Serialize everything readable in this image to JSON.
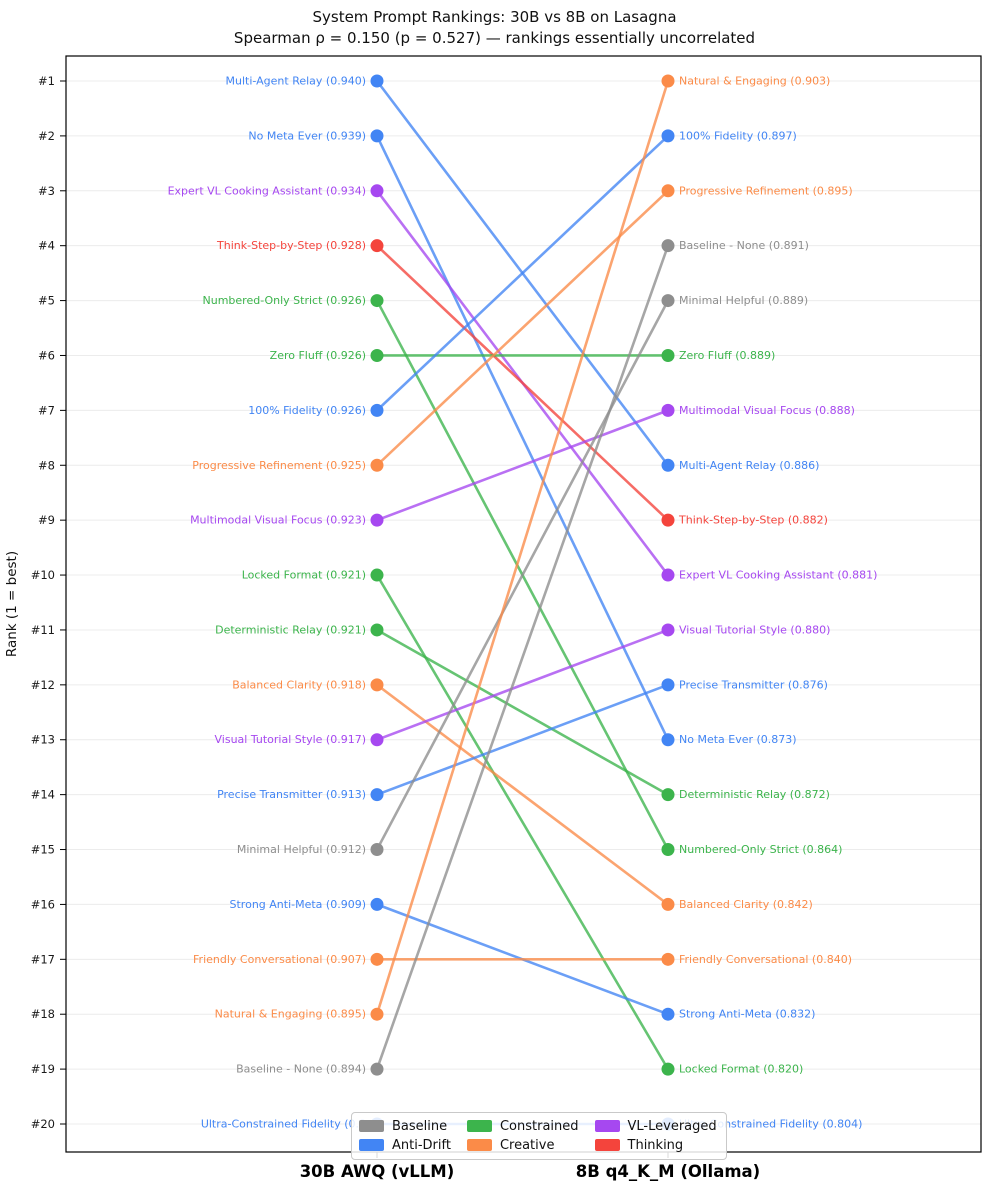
{
  "title": "System Prompt Rankings: 30B vs 8B on Lasagna",
  "subtitle": "Spearman ρ = 0.150 (p = 0.527) — rankings essentially uncorrelated",
  "chart_data": {
    "type": "line",
    "subtype": "slope-ranking",
    "title": "System Prompt Rankings: 30B vs 8B on Lasagna",
    "subtitle": "Spearman ρ = 0.150 (p = 0.527) — rankings essentially uncorrelated",
    "ylabel": "Rank (1 = best)",
    "yticks": [
      "#1",
      "#2",
      "#3",
      "#4",
      "#5",
      "#6",
      "#7",
      "#8",
      "#9",
      "#10",
      "#11",
      "#12",
      "#13",
      "#14",
      "#15",
      "#16",
      "#17",
      "#18",
      "#19",
      "#20"
    ],
    "ylim": [
      1,
      20
    ],
    "grid": true,
    "legend_position": "lower center",
    "columns": [
      {
        "label": "30B AWQ (vLLM)"
      },
      {
        "label": "8B q4_K_M (Ollama)"
      }
    ],
    "categories": {
      "Baseline": "#8e8e8e",
      "Anti-Drift": "#4285f4",
      "Constrained": "#3cb44c",
      "Creative": "#fb8b48",
      "VL-Leveraged": "#a648f0",
      "Thinking": "#f4443c"
    },
    "legend_columns": [
      [
        "Baseline",
        "Anti-Drift"
      ],
      [
        "Constrained",
        "Creative"
      ],
      [
        "VL-Leveraged",
        "Thinking"
      ]
    ],
    "prompts": [
      {
        "name": "Multi-Agent Relay",
        "category": "Anti-Drift",
        "left_rank": 1,
        "right_rank": 8,
        "left_label": "Multi-Agent Relay (0.940)",
        "right_label": "Multi-Agent Relay (0.886)"
      },
      {
        "name": "No Meta Ever",
        "category": "Anti-Drift",
        "left_rank": 2,
        "right_rank": 13,
        "left_label": "No Meta Ever (0.939)",
        "right_label": "No Meta Ever (0.873)"
      },
      {
        "name": "Expert VL Cooking Assistant",
        "category": "VL-Leveraged",
        "left_rank": 3,
        "right_rank": 10,
        "left_label": "Expert VL Cooking Assistant (0.934)",
        "right_label": "Expert VL Cooking Assistant (0.881)"
      },
      {
        "name": "Think-Step-by-Step",
        "category": "Thinking",
        "left_rank": 4,
        "right_rank": 9,
        "left_label": "Think-Step-by-Step (0.928)",
        "right_label": "Think-Step-by-Step (0.882)"
      },
      {
        "name": "Numbered-Only Strict",
        "category": "Constrained",
        "left_rank": 5,
        "right_rank": 15,
        "left_label": "Numbered-Only Strict (0.926)",
        "right_label": "Numbered-Only Strict (0.864)"
      },
      {
        "name": "Zero Fluff",
        "category": "Constrained",
        "left_rank": 6,
        "right_rank": 6,
        "left_label": "Zero Fluff (0.926)",
        "right_label": "Zero Fluff (0.889)"
      },
      {
        "name": "100% Fidelity",
        "category": "Anti-Drift",
        "left_rank": 7,
        "right_rank": 2,
        "left_label": "100% Fidelity (0.926)",
        "right_label": "100% Fidelity (0.897)"
      },
      {
        "name": "Progressive Refinement",
        "category": "Creative",
        "left_rank": 8,
        "right_rank": 3,
        "left_label": "Progressive Refinement (0.925)",
        "right_label": "Progressive Refinement (0.895)"
      },
      {
        "name": "Multimodal Visual Focus",
        "category": "VL-Leveraged",
        "left_rank": 9,
        "right_rank": 7,
        "left_label": "Multimodal Visual Focus (0.923)",
        "right_label": "Multimodal Visual Focus (0.888)"
      },
      {
        "name": "Locked Format",
        "category": "Constrained",
        "left_rank": 10,
        "right_rank": 19,
        "left_label": "Locked Format (0.921)",
        "right_label": "Locked Format (0.820)"
      },
      {
        "name": "Deterministic Relay",
        "category": "Constrained",
        "left_rank": 11,
        "right_rank": 14,
        "left_label": "Deterministic Relay (0.921)",
        "right_label": "Deterministic Relay (0.872)"
      },
      {
        "name": "Balanced Clarity",
        "category": "Creative",
        "left_rank": 12,
        "right_rank": 16,
        "left_label": "Balanced Clarity (0.918)",
        "right_label": "Balanced Clarity (0.842)"
      },
      {
        "name": "Visual Tutorial Style",
        "category": "VL-Leveraged",
        "left_rank": 13,
        "right_rank": 11,
        "left_label": "Visual Tutorial Style (0.917)",
        "right_label": "Visual Tutorial Style (0.880)"
      },
      {
        "name": "Precise Transmitter",
        "category": "Anti-Drift",
        "left_rank": 14,
        "right_rank": 12,
        "left_label": "Precise Transmitter (0.913)",
        "right_label": "Precise Transmitter (0.876)"
      },
      {
        "name": "Minimal Helpful",
        "category": "Baseline",
        "left_rank": 15,
        "right_rank": 5,
        "left_label": "Minimal Helpful (0.912)",
        "right_label": "Minimal Helpful (0.889)"
      },
      {
        "name": "Strong Anti-Meta",
        "category": "Anti-Drift",
        "left_rank": 16,
        "right_rank": 18,
        "left_label": "Strong Anti-Meta (0.909)",
        "right_label": "Strong Anti-Meta (0.832)"
      },
      {
        "name": "Friendly Conversational",
        "category": "Creative",
        "left_rank": 17,
        "right_rank": 17,
        "left_label": "Friendly Conversational (0.907)",
        "right_label": "Friendly Conversational (0.840)"
      },
      {
        "name": "Natural & Engaging",
        "category": "Creative",
        "left_rank": 18,
        "right_rank": 1,
        "left_label": "Natural & Engaging (0.895)",
        "right_label": "Natural & Engaging (0.903)"
      },
      {
        "name": "Baseline - None",
        "category": "Baseline",
        "left_rank": 19,
        "right_rank": 4,
        "left_label": "Baseline - None (0.894)",
        "right_label": "Baseline - None (0.891)"
      },
      {
        "name": "Ultra-Constrained Fidelity",
        "category": "Anti-Drift",
        "left_rank": 20,
        "right_rank": 20,
        "left_label": "Ultra-Constrained Fidelity (0.8",
        "left_label_occluded": true,
        "right_label": "Ultra-Constrained Fidelity (0.804)"
      }
    ]
  }
}
